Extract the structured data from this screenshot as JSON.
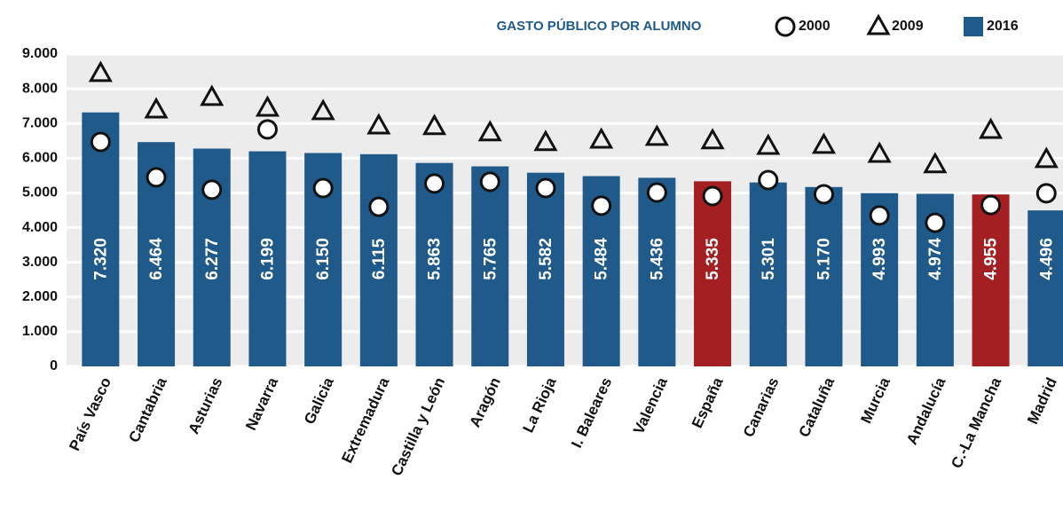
{
  "chart_data": {
    "type": "bar",
    "title": "GASTO PÚBLICO POR ALUMNO",
    "categories": [
      "País Vasco",
      "Cantabria",
      "Asturias",
      "Navarra",
      "Galicia",
      "Extremadura",
      "Castilla y León",
      "Aragón",
      "La Rioja",
      "I. Baleares",
      "Valencia",
      "España",
      "Canarias",
      "Cataluña",
      "Murcia",
      "Andalucía",
      "C.-La Mancha",
      "Madrid"
    ],
    "series": [
      {
        "name": "2000",
        "marker": "circle",
        "color": "#111111",
        "values": [
          6470,
          5450,
          5090,
          6830,
          5140,
          4600,
          5270,
          5320,
          5140,
          4630,
          5010,
          4910,
          5370,
          4960,
          4350,
          4140,
          4650,
          4990
        ]
      },
      {
        "name": "2009",
        "marker": "triangle",
        "color": "#111111",
        "values": [
          8440,
          7390,
          7750,
          7440,
          7340,
          6930,
          6910,
          6730,
          6450,
          6520,
          6600,
          6500,
          6340,
          6370,
          6110,
          5810,
          6800,
          5960
        ]
      },
      {
        "name": "2016",
        "marker": "square",
        "color": "#1f5a8a",
        "colors": [
          "#1f5a8a",
          "#1f5a8a",
          "#1f5a8a",
          "#1f5a8a",
          "#1f5a8a",
          "#1f5a8a",
          "#1f5a8a",
          "#1f5a8a",
          "#1f5a8a",
          "#1f5a8a",
          "#1f5a8a",
          "#a31f22",
          "#1f5a8a",
          "#1f5a8a",
          "#1f5a8a",
          "#1f5a8a",
          "#a31f22",
          "#1f5a8a"
        ],
        "values": [
          7320,
          6464,
          6277,
          6199,
          6150,
          6115,
          5863,
          5765,
          5582,
          5484,
          5436,
          5335,
          5301,
          5170,
          4993,
          4974,
          4955,
          4496
        ],
        "value_labels": [
          "7.320",
          "6.464",
          "6.277",
          "6.199",
          "6.150",
          "6.115",
          "5.863",
          "5.765",
          "5.582",
          "5.484",
          "5.436",
          "5.335",
          "5.301",
          "5.170",
          "4.993",
          "4.974",
          "4.955",
          "4.496"
        ]
      }
    ],
    "ylim": [
      0,
      9000
    ],
    "yticks": [
      0,
      {
        "value": 1000,
        "label": "1.000"
      },
      {
        "value": 2000,
        "label": "2.000"
      },
      {
        "value": 3000,
        "label": "3.000"
      },
      {
        "value": 4000,
        "label": "4.000"
      },
      {
        "value": 5000,
        "label": "5.000"
      },
      {
        "value": 6000,
        "label": "6.000"
      },
      {
        "value": 7000,
        "label": "7.000"
      },
      {
        "value": 8000,
        "label": "8.000"
      },
      {
        "value": 9000,
        "label": "9.000"
      }
    ],
    "grid": true
  }
}
